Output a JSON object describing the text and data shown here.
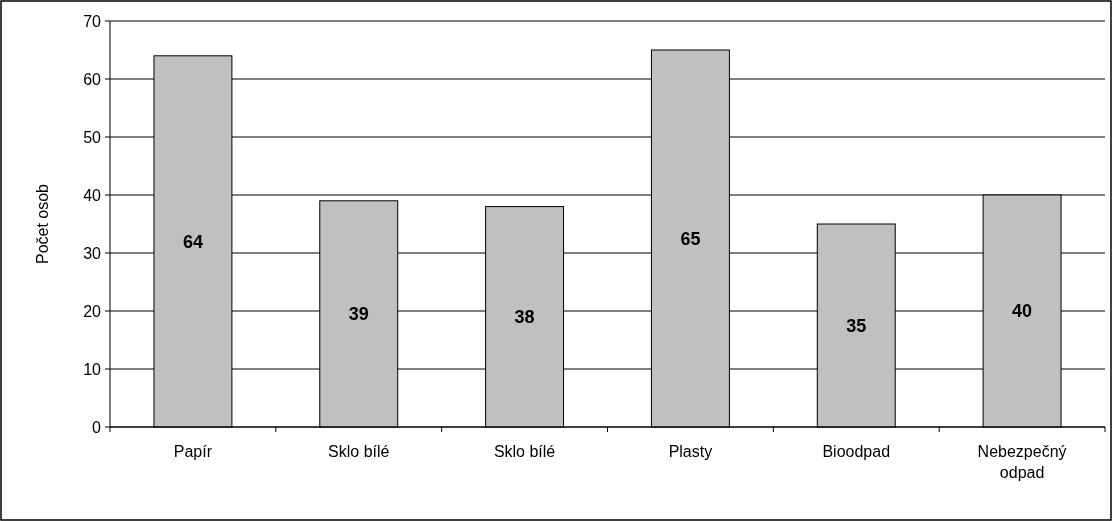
{
  "chart_data": {
    "type": "bar",
    "ylabel": "Počet osob",
    "categories": [
      "Papír",
      "Sklo bílé",
      "Sklo bílé",
      "Plasty",
      "Bioodpad",
      "Nebezpečný odpad"
    ],
    "values": [
      64,
      39,
      38,
      65,
      35,
      40
    ],
    "color": "#c0c0c0",
    "ylim": [
      0,
      70
    ],
    "yticks": [
      0,
      10,
      20,
      30,
      40,
      50,
      60,
      70
    ],
    "grid": "y",
    "data_labels": true
  }
}
